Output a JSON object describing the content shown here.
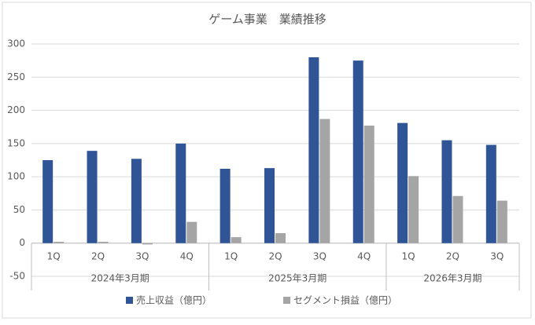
{
  "chart_data": {
    "type": "bar",
    "title": "ゲーム事業　業績推移",
    "groups": [
      {
        "name": "2024年3月期",
        "categories": [
          "1Q",
          "2Q",
          "3Q",
          "4Q"
        ]
      },
      {
        "name": "2025年3月期",
        "categories": [
          "1Q",
          "2Q",
          "3Q",
          "4Q"
        ]
      },
      {
        "name": "2026年3月期",
        "categories": [
          "1Q",
          "2Q",
          "3Q"
        ]
      }
    ],
    "series": [
      {
        "name": "売上収益（億円）",
        "color": "#2f5597",
        "values": [
          125,
          139,
          127,
          150,
          112,
          113,
          280,
          275,
          181,
          155,
          148
        ]
      },
      {
        "name": "セグメント損益（億円）",
        "color": "#a5a5a5",
        "values": [
          2,
          2,
          -2,
          32,
          9,
          15,
          187,
          177,
          101,
          71,
          64
        ]
      }
    ],
    "ylim": [
      -50,
      300
    ],
    "yticks": [
      -50,
      0,
      50,
      100,
      150,
      200,
      250,
      300
    ],
    "grid": true,
    "legend": "bottom"
  }
}
